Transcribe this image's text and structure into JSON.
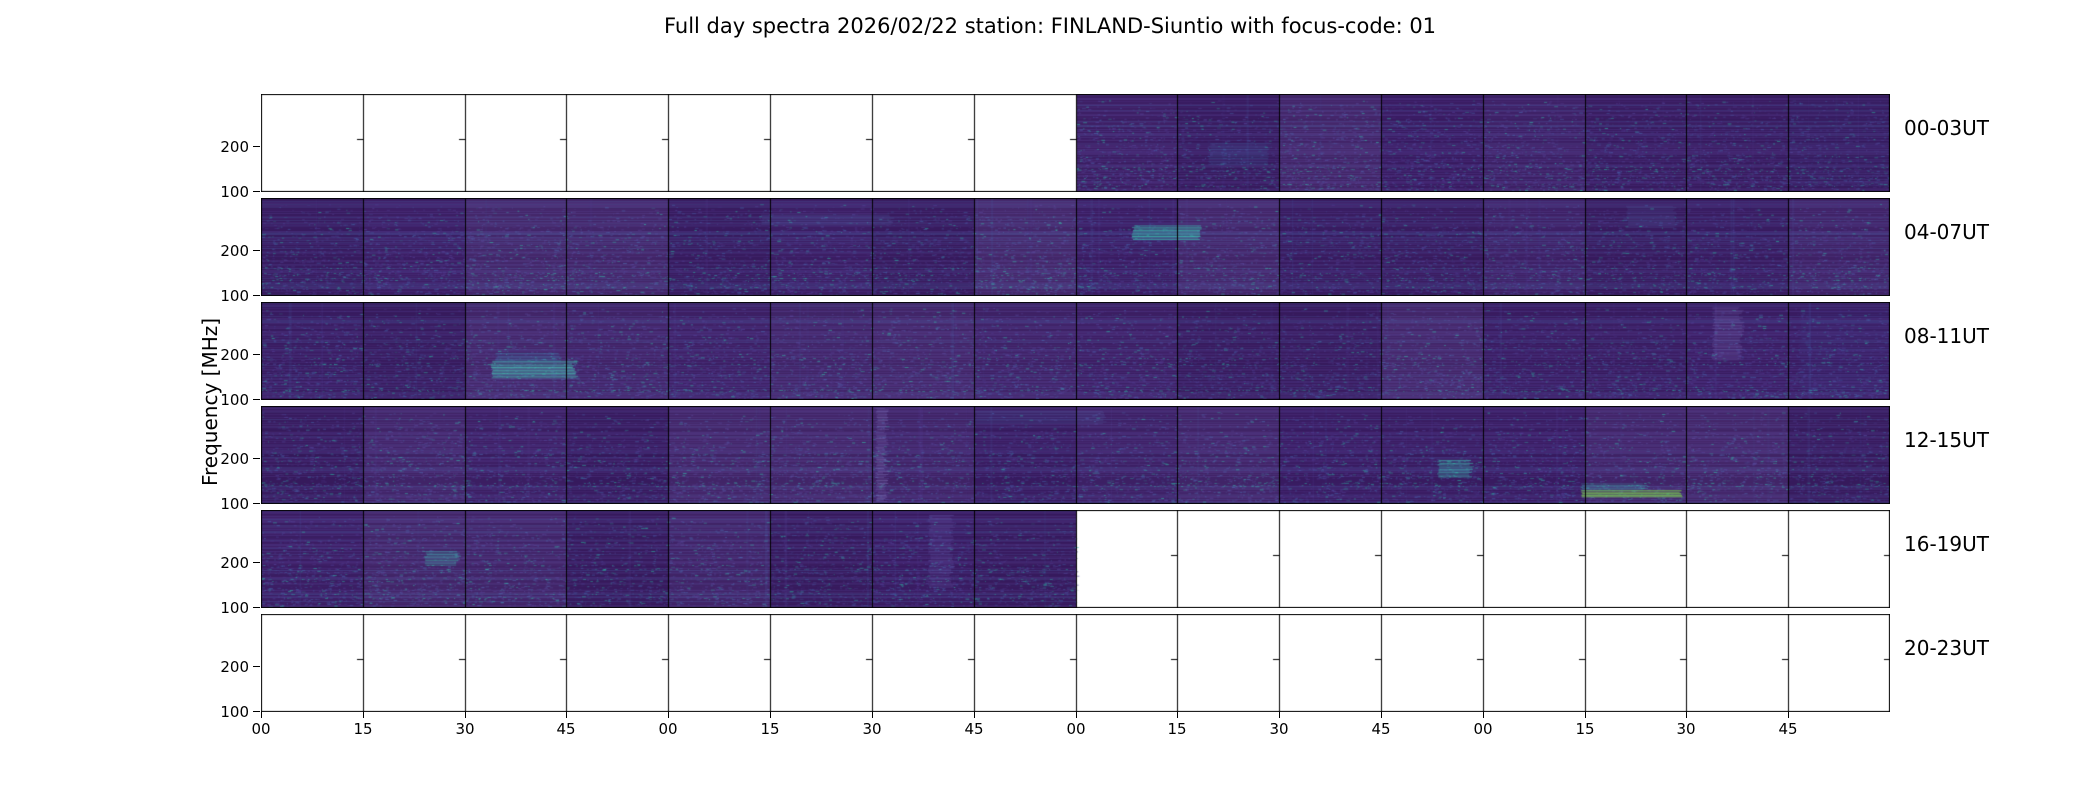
{
  "title": "Full day spectra 2026/02/22 station: FINLAND-Siuntio with focus-code: 01",
  "y_axis_label": "Frequency [MHz]",
  "chart_data": {
    "type": "heatmap",
    "title": "Full day spectra 2026/02/22 station: FINLAND-Siuntio with focus-code: 01",
    "station": "FINLAND-Siuntio",
    "date": "2026/02/22",
    "focus_code": "01",
    "ylabel": "Frequency [MHz]",
    "y_ticks": [
      "200",
      "100"
    ],
    "y_range_mhz": [
      100,
      450
    ],
    "y_scale": "log-inverted-callisto",
    "segments_per_panel": 16,
    "segment_minutes": 15,
    "panel_hours": 4,
    "x_tick_labels": [
      "00",
      "15",
      "30",
      "45",
      "00",
      "15",
      "30",
      "45",
      "00",
      "15",
      "30",
      "45",
      "00",
      "15",
      "30",
      "45"
    ],
    "grid": "vertical 15-min file boundaries, black",
    "legend": "none",
    "colors": {
      "base": "#3f2068",
      "row_dark": "#2a1150",
      "row_light": "#55449b",
      "blue": "#4766ad",
      "teal": "#2fb5a3",
      "green": "#7bd14f",
      "border": "#000000",
      "blank": "#ffffff"
    },
    "panels": [
      {
        "label": "00-03UT",
        "coverage": "no data 00:00-02:00, spectrogram data 02:00-04:00",
        "data_segments": [
          8,
          16
        ],
        "features": [
          {
            "seg0": 9.3,
            "seg1": 9.9,
            "y0": 0.5,
            "y1": 0.72,
            "color": "#3b6fa5",
            "alpha": 0.35
          },
          {
            "seg0": 15.0,
            "seg1": 16.0,
            "y0": 0.06,
            "y1": 0.94,
            "color": "#4766ad",
            "alpha": 0.1
          }
        ]
      },
      {
        "label": "04-07UT",
        "coverage": "full data 04:00-08:00",
        "data_segments": [
          0,
          16
        ],
        "features": [
          {
            "seg0": 8.55,
            "seg1": 9.25,
            "y0": 0.28,
            "y1": 0.42,
            "color": "#3cc6b4",
            "alpha": 0.85
          },
          {
            "seg0": 4.9,
            "seg1": 6.2,
            "y0": 0.17,
            "y1": 0.27,
            "color": "#5a79b8",
            "alpha": 0.3
          },
          {
            "seg0": 13.4,
            "seg1": 13.9,
            "y0": 0.08,
            "y1": 0.3,
            "color": "#5a79b8",
            "alpha": 0.25
          }
        ]
      },
      {
        "label": "08-11UT",
        "coverage": "full data 08:00-12:00, bright emission band near 08:35",
        "data_segments": [
          0,
          16
        ],
        "features": [
          {
            "seg0": 2.25,
            "seg1": 3.1,
            "y0": 0.6,
            "y1": 0.78,
            "color": "#45d0b8",
            "alpha": 0.9
          },
          {
            "seg0": 2.3,
            "seg1": 2.95,
            "y0": 0.52,
            "y1": 0.6,
            "color": "#3a9fc0",
            "alpha": 0.4
          },
          {
            "seg0": 14.25,
            "seg1": 14.55,
            "y0": 0.05,
            "y1": 0.6,
            "color": "#8a7fc5",
            "alpha": 0.35
          },
          {
            "seg0": 15.1,
            "seg1": 16.0,
            "y0": 0.06,
            "y1": 0.94,
            "color": "#4766ad",
            "alpha": 0.15
          }
        ]
      },
      {
        "label": "12-15UT",
        "coverage": "full data 12:00-16:00, green low-frequency streak near 15:15-15:30",
        "data_segments": [
          0,
          16
        ],
        "features": [
          {
            "seg0": 12.95,
            "seg1": 13.95,
            "y0": 0.86,
            "y1": 0.93,
            "color": "#7bd14f",
            "alpha": 0.95
          },
          {
            "seg0": 12.95,
            "seg1": 13.6,
            "y0": 0.79,
            "y1": 0.86,
            "color": "#3cc6b4",
            "alpha": 0.45
          },
          {
            "seg0": 11.55,
            "seg1": 11.9,
            "y0": 0.55,
            "y1": 0.72,
            "color": "#3cc6b4",
            "alpha": 0.7
          },
          {
            "seg0": 6.03,
            "seg1": 6.15,
            "y0": 0.02,
            "y1": 0.98,
            "color": "#8a7fc5",
            "alpha": 0.45
          },
          {
            "seg0": 7.0,
            "seg1": 8.3,
            "y0": 0.05,
            "y1": 0.18,
            "color": "#5a79b8",
            "alpha": 0.3
          }
        ]
      },
      {
        "label": "16-19UT",
        "coverage": "spectrogram data 16:00-18:00, no data 18:00-20:00",
        "data_segments": [
          0,
          8
        ],
        "features": [
          {
            "seg0": 1.6,
            "seg1": 1.95,
            "y0": 0.42,
            "y1": 0.56,
            "color": "#3cc6b4",
            "alpha": 0.55
          },
          {
            "seg0": 6.55,
            "seg1": 6.8,
            "y0": 0.05,
            "y1": 0.8,
            "color": "#6a5fae",
            "alpha": 0.4
          }
        ]
      },
      {
        "label": "20-23UT",
        "coverage": "no data 20:00-24:00",
        "data_segments": [
          0,
          0
        ],
        "features": []
      }
    ]
  }
}
